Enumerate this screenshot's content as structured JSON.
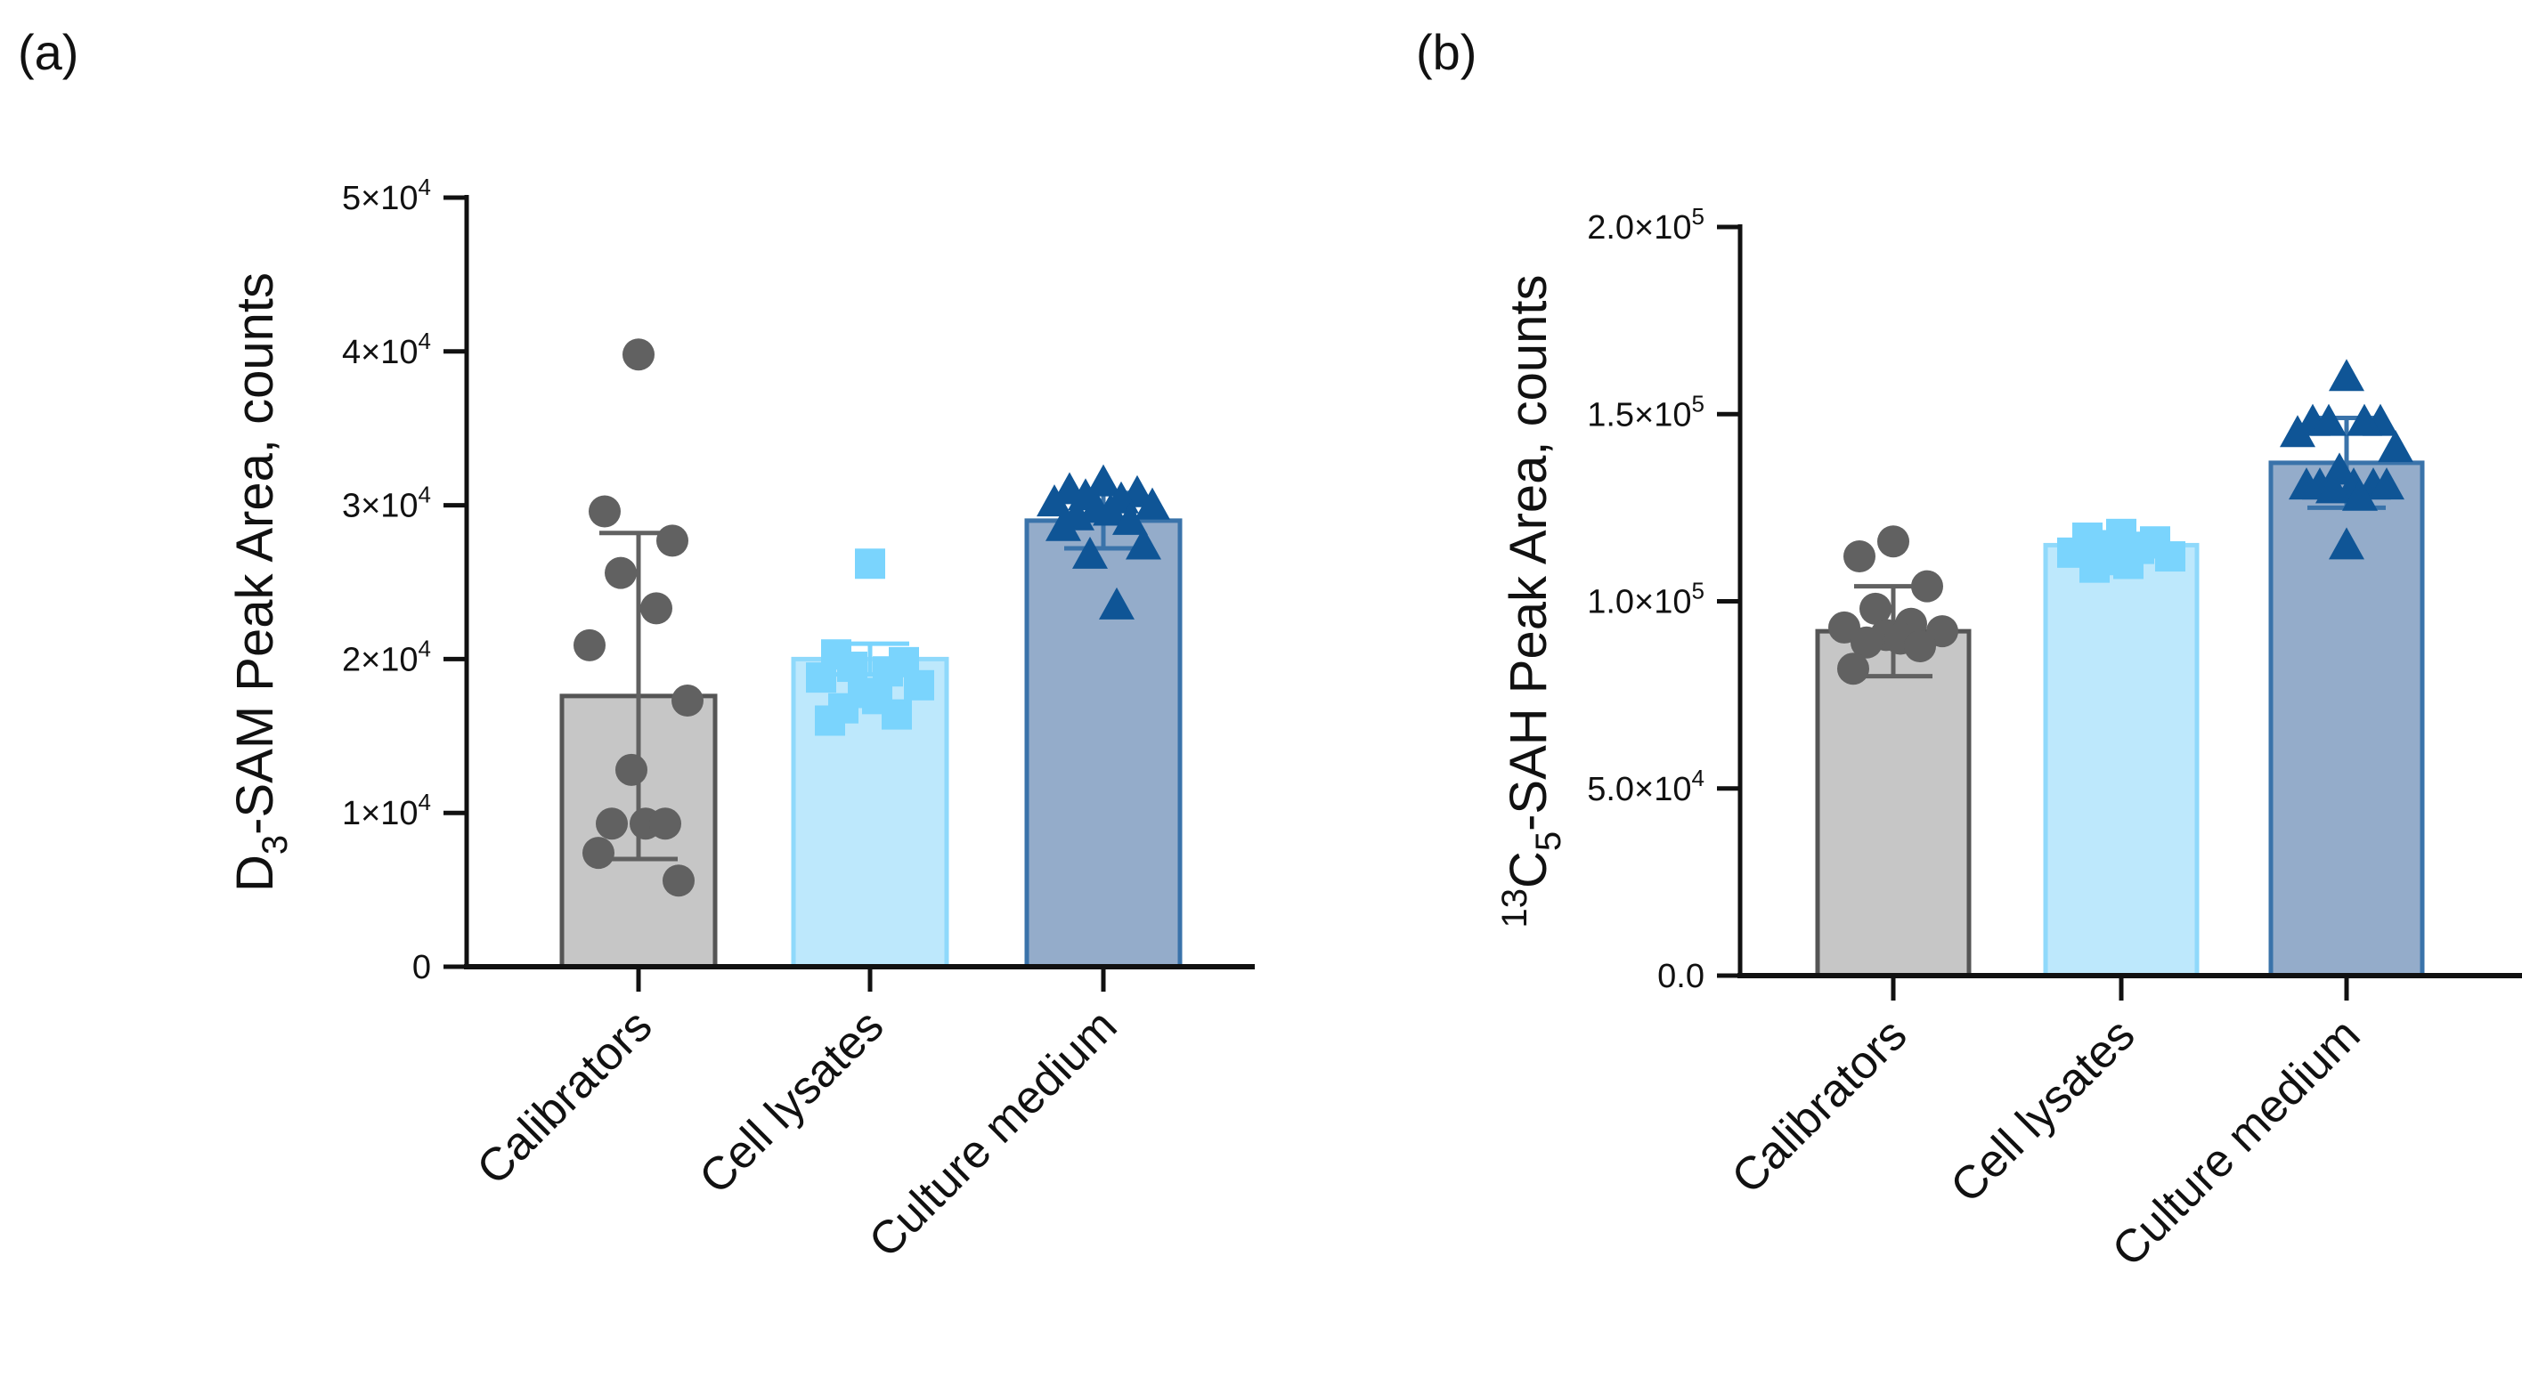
{
  "chart_data": [
    {
      "type": "bar",
      "panel_label": "(a)",
      "ylabel_parts": {
        "pre": "D",
        "sub": "3",
        "post": "-SAM Peak Area, counts"
      },
      "ylim": [
        0,
        50000
      ],
      "yticks": [
        {
          "value": 0,
          "base": "0",
          "exp": ""
        },
        {
          "value": 10000,
          "base": "1×10",
          "exp": "4"
        },
        {
          "value": 20000,
          "base": "2×10",
          "exp": "4"
        },
        {
          "value": 30000,
          "base": "3×10",
          "exp": "4"
        },
        {
          "value": 40000,
          "base": "4×10",
          "exp": "4"
        },
        {
          "value": 50000,
          "base": "5×10",
          "exp": "4"
        }
      ],
      "categories": [
        "Calibrators",
        "Cell lysates",
        "Culture medium"
      ],
      "values": [
        17600,
        20000,
        29000
      ],
      "errors": [
        10600,
        1000,
        1800
      ],
      "points": [
        [
          39800,
          29600,
          27700,
          25600,
          23300,
          20900,
          17300,
          12800,
          9300,
          9300,
          9300,
          7400,
          5600
        ],
        [
          26200,
          20300,
          19800,
          19500,
          19200,
          18800,
          18300,
          17800,
          17400,
          16800,
          16400,
          16000
        ],
        [
          31500,
          31000,
          30800,
          30600,
          30400,
          30200,
          30000,
          29800,
          29600,
          29300,
          29000,
          28600,
          27400,
          26800,
          23500
        ]
      ]
    },
    {
      "type": "bar",
      "panel_label": "(b)",
      "ylabel_parts": {
        "sup": "13",
        "pre": "C",
        "sub": "5",
        "post": "-SAH Peak Area, counts"
      },
      "ylim": [
        0,
        200000
      ],
      "yticks": [
        {
          "value": 0,
          "base": "0.0",
          "exp": ""
        },
        {
          "value": 50000,
          "base": "5.0×10",
          "exp": "4"
        },
        {
          "value": 100000,
          "base": "1.0×10",
          "exp": "5"
        },
        {
          "value": 150000,
          "base": "1.5×10",
          "exp": "5"
        },
        {
          "value": 200000,
          "base": "2.0×10",
          "exp": "5"
        }
      ],
      "categories": [
        "Calibrators",
        "Cell lysates",
        "Culture medium"
      ],
      "values": [
        92000,
        115000,
        137000
      ],
      "errors": [
        12000,
        3000,
        12000
      ],
      "points": [
        [
          116000,
          112000,
          104000,
          98000,
          94000,
          93000,
          92000,
          91000,
          90000,
          89000,
          88000,
          82000
        ],
        [
          118000,
          117000,
          116000,
          115000,
          114000,
          113000,
          112000,
          111000,
          110000,
          109000
        ],
        [
          160000,
          148000,
          148000,
          148000,
          148000,
          145000,
          141000,
          135000,
          131000,
          131000,
          131000,
          131000,
          131000,
          130000,
          128000,
          115000
        ]
      ],
      "colors": {
        "calibrators_fill": "#c6c6c6",
        "calibrators_stroke": "#555555",
        "lysates_fill": "#bde8fc",
        "lysates_marker": "#7ad4fd",
        "medium_fill": "#94acca",
        "medium_marker": "#0f5596"
      }
    }
  ]
}
